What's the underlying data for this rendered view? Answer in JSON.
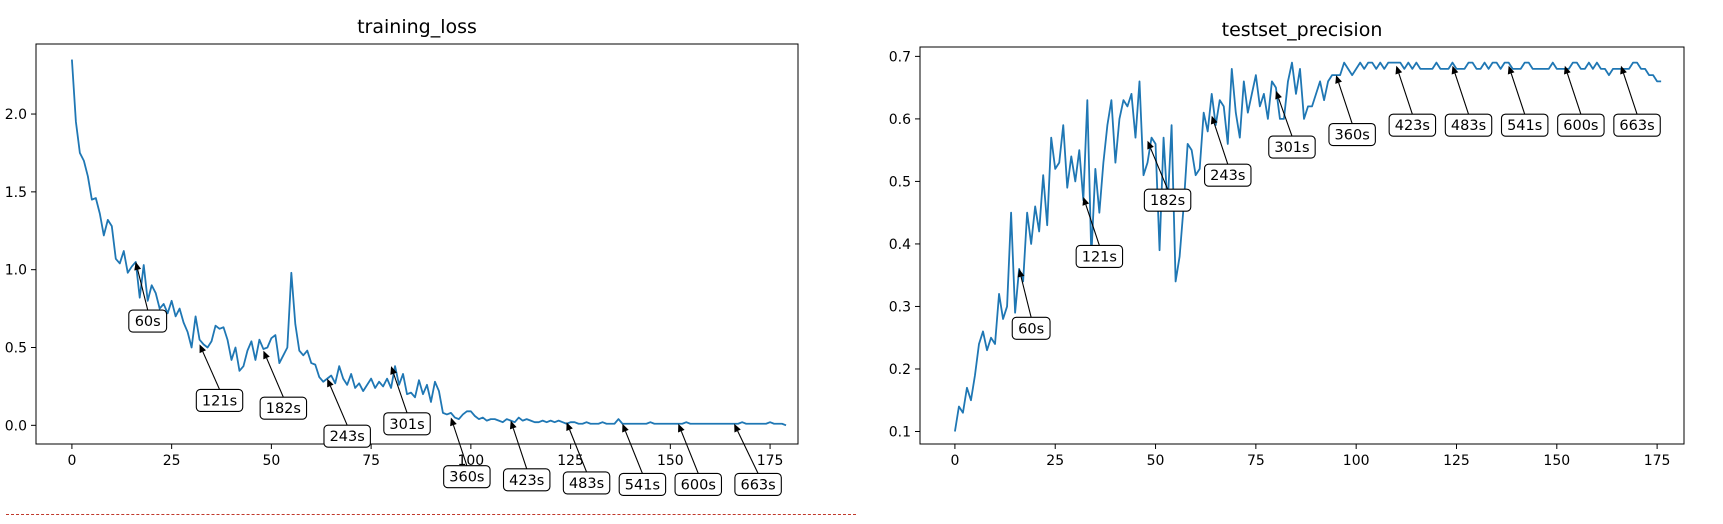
{
  "chart_data": [
    {
      "type": "line",
      "title": "training_loss",
      "xlabel": "",
      "ylabel": "",
      "xlim": [
        -9,
        182
      ],
      "ylim": [
        -0.12,
        2.45
      ],
      "xticks": [
        0,
        25,
        50,
        75,
        100,
        125,
        150,
        175
      ],
      "yticks": [
        0.0,
        0.5,
        1.0,
        1.5,
        2.0
      ],
      "ytick_labels": [
        "0.0",
        "0.5",
        "1.0",
        "1.5",
        "2.0"
      ],
      "grid": false,
      "series": [
        {
          "color": "#1f77b4",
          "x_start": 0,
          "values": [
            2.35,
            1.95,
            1.75,
            1.7,
            1.6,
            1.45,
            1.46,
            1.36,
            1.22,
            1.32,
            1.28,
            1.07,
            1.04,
            1.12,
            0.98,
            1.02,
            1.05,
            0.82,
            1.03,
            0.8,
            0.9,
            0.85,
            0.75,
            0.78,
            0.72,
            0.8,
            0.7,
            0.75,
            0.66,
            0.6,
            0.5,
            0.7,
            0.55,
            0.52,
            0.5,
            0.54,
            0.64,
            0.62,
            0.63,
            0.55,
            0.42,
            0.5,
            0.35,
            0.38,
            0.48,
            0.54,
            0.42,
            0.55,
            0.49,
            0.5,
            0.56,
            0.58,
            0.4,
            0.45,
            0.5,
            0.98,
            0.65,
            0.48,
            0.45,
            0.48,
            0.4,
            0.39,
            0.31,
            0.28,
            0.3,
            0.32,
            0.27,
            0.38,
            0.3,
            0.26,
            0.33,
            0.24,
            0.27,
            0.22,
            0.26,
            0.3,
            0.24,
            0.28,
            0.25,
            0.3,
            0.24,
            0.38,
            0.26,
            0.33,
            0.2,
            0.21,
            0.18,
            0.29,
            0.2,
            0.26,
            0.15,
            0.28,
            0.22,
            0.08,
            0.07,
            0.08,
            0.05,
            0.04,
            0.07,
            0.09,
            0.09,
            0.06,
            0.04,
            0.05,
            0.03,
            0.04,
            0.04,
            0.03,
            0.02,
            0.04,
            0.03,
            0.02,
            0.05,
            0.03,
            0.04,
            0.03,
            0.02,
            0.02,
            0.03,
            0.02,
            0.03,
            0.02,
            0.03,
            0.02,
            0.01,
            0.02,
            0.02,
            0.01,
            0.01,
            0.02,
            0.01,
            0.01,
            0.01,
            0.02,
            0.01,
            0.01,
            0.01,
            0.04,
            0.01,
            0.01,
            0.01,
            0.01,
            0.01,
            0.01,
            0.01,
            0.02,
            0.01,
            0.01,
            0.01,
            0.01,
            0.01,
            0.01,
            0.01,
            0.01,
            0.02,
            0.01,
            0.01,
            0.01,
            0.01,
            0.01,
            0.01,
            0.01,
            0.01,
            0.01,
            0.01,
            0.01,
            0.01,
            0.01,
            0.02,
            0.01,
            0.01,
            0.01,
            0.01,
            0.01,
            0.01,
            0.02,
            0.01,
            0.01,
            0.01,
            0.0
          ]
        }
      ],
      "annotations": [
        {
          "label": "60s",
          "x": 16,
          "y": 1.05,
          "text_x": 19,
          "text_y": 0.67
        },
        {
          "label": "121s",
          "x": 32,
          "y": 0.52,
          "text_x": 37,
          "text_y": 0.16
        },
        {
          "label": "182s",
          "x": 48,
          "y": 0.48,
          "text_x": 53,
          "text_y": 0.11
        },
        {
          "label": "243s",
          "x": 64,
          "y": 0.3,
          "text_x": 69,
          "text_y": -0.07
        },
        {
          "label": "301s",
          "x": 80,
          "y": 0.38,
          "text_x": 84,
          "text_y": 0.01
        },
        {
          "label": "360s",
          "x": 95,
          "y": 0.05,
          "text_x": 99,
          "text_y": -0.33
        },
        {
          "label": "423s",
          "x": 110,
          "y": 0.03,
          "text_x": 114,
          "text_y": -0.35
        },
        {
          "label": "483s",
          "x": 124,
          "y": 0.02,
          "text_x": 129,
          "text_y": -0.37
        },
        {
          "label": "541s",
          "x": 138,
          "y": 0.01,
          "text_x": 143,
          "text_y": -0.38
        },
        {
          "label": "600s",
          "x": 152,
          "y": 0.01,
          "text_x": 157,
          "text_y": -0.38
        },
        {
          "label": "663s",
          "x": 166,
          "y": 0.01,
          "text_x": 172,
          "text_y": -0.38
        }
      ]
    },
    {
      "type": "line",
      "title": "testset_precision",
      "xlabel": "",
      "ylabel": "",
      "xlim": [
        -8.7,
        181.7
      ],
      "ylim": [
        0.08,
        0.715
      ],
      "xticks": [
        0,
        25,
        50,
        75,
        100,
        125,
        150,
        175
      ],
      "yticks": [
        0.1,
        0.2,
        0.3,
        0.4,
        0.5,
        0.6,
        0.7
      ],
      "ytick_labels": [
        "0.1",
        "0.2",
        "0.3",
        "0.4",
        "0.5",
        "0.6",
        "0.7"
      ],
      "grid": false,
      "series": [
        {
          "color": "#1f77b4",
          "x_start": 0,
          "values": [
            0.1,
            0.14,
            0.13,
            0.17,
            0.15,
            0.19,
            0.24,
            0.26,
            0.23,
            0.25,
            0.24,
            0.32,
            0.28,
            0.3,
            0.45,
            0.29,
            0.36,
            0.34,
            0.45,
            0.4,
            0.46,
            0.42,
            0.51,
            0.43,
            0.57,
            0.52,
            0.53,
            0.59,
            0.49,
            0.54,
            0.5,
            0.55,
            0.47,
            0.63,
            0.38,
            0.52,
            0.45,
            0.53,
            0.59,
            0.63,
            0.53,
            0.6,
            0.63,
            0.62,
            0.64,
            0.57,
            0.66,
            0.51,
            0.53,
            0.57,
            0.56,
            0.39,
            0.57,
            0.46,
            0.59,
            0.34,
            0.38,
            0.46,
            0.56,
            0.55,
            0.51,
            0.52,
            0.61,
            0.58,
            0.64,
            0.59,
            0.63,
            0.62,
            0.56,
            0.68,
            0.61,
            0.57,
            0.66,
            0.61,
            0.64,
            0.67,
            0.62,
            0.64,
            0.6,
            0.66,
            0.65,
            0.6,
            0.6,
            0.66,
            0.69,
            0.64,
            0.68,
            0.6,
            0.62,
            0.62,
            0.64,
            0.66,
            0.63,
            0.66,
            0.67,
            0.67,
            0.67,
            0.69,
            0.68,
            0.67,
            0.68,
            0.69,
            0.68,
            0.69,
            0.69,
            0.68,
            0.69,
            0.68,
            0.69,
            0.69,
            0.69,
            0.69,
            0.68,
            0.69,
            0.68,
            0.69,
            0.68,
            0.68,
            0.68,
            0.68,
            0.69,
            0.68,
            0.68,
            0.68,
            0.69,
            0.68,
            0.68,
            0.68,
            0.69,
            0.69,
            0.68,
            0.68,
            0.69,
            0.68,
            0.69,
            0.69,
            0.68,
            0.69,
            0.69,
            0.68,
            0.68,
            0.68,
            0.69,
            0.69,
            0.68,
            0.68,
            0.68,
            0.68,
            0.68,
            0.69,
            0.68,
            0.68,
            0.68,
            0.68,
            0.69,
            0.69,
            0.68,
            0.68,
            0.69,
            0.68,
            0.69,
            0.68,
            0.68,
            0.67,
            0.68,
            0.68,
            0.68,
            0.68,
            0.68,
            0.69,
            0.69,
            0.68,
            0.68,
            0.67,
            0.67,
            0.66,
            0.66
          ]
        }
      ],
      "annotations": [
        {
          "label": "60s",
          "x": 16,
          "y": 0.36,
          "text_x": 19,
          "text_y": 0.265
        },
        {
          "label": "121s",
          "x": 32,
          "y": 0.475,
          "text_x": 36,
          "text_y": 0.38
        },
        {
          "label": "182s",
          "x": 48,
          "y": 0.565,
          "text_x": 53,
          "text_y": 0.47
        },
        {
          "label": "243s",
          "x": 64,
          "y": 0.605,
          "text_x": 68,
          "text_y": 0.51
        },
        {
          "label": "301s",
          "x": 80,
          "y": 0.645,
          "text_x": 84,
          "text_y": 0.555
        },
        {
          "label": "360s",
          "x": 95,
          "y": 0.67,
          "text_x": 99,
          "text_y": 0.575
        },
        {
          "label": "423s",
          "x": 110,
          "y": 0.685,
          "text_x": 114,
          "text_y": 0.59
        },
        {
          "label": "483s",
          "x": 124,
          "y": 0.685,
          "text_x": 128,
          "text_y": 0.59
        },
        {
          "label": "541s",
          "x": 138,
          "y": 0.685,
          "text_x": 142,
          "text_y": 0.59
        },
        {
          "label": "600s",
          "x": 152,
          "y": 0.685,
          "text_x": 156,
          "text_y": 0.59
        },
        {
          "label": "663s",
          "x": 166,
          "y": 0.685,
          "text_x": 170,
          "text_y": 0.59
        }
      ]
    }
  ]
}
